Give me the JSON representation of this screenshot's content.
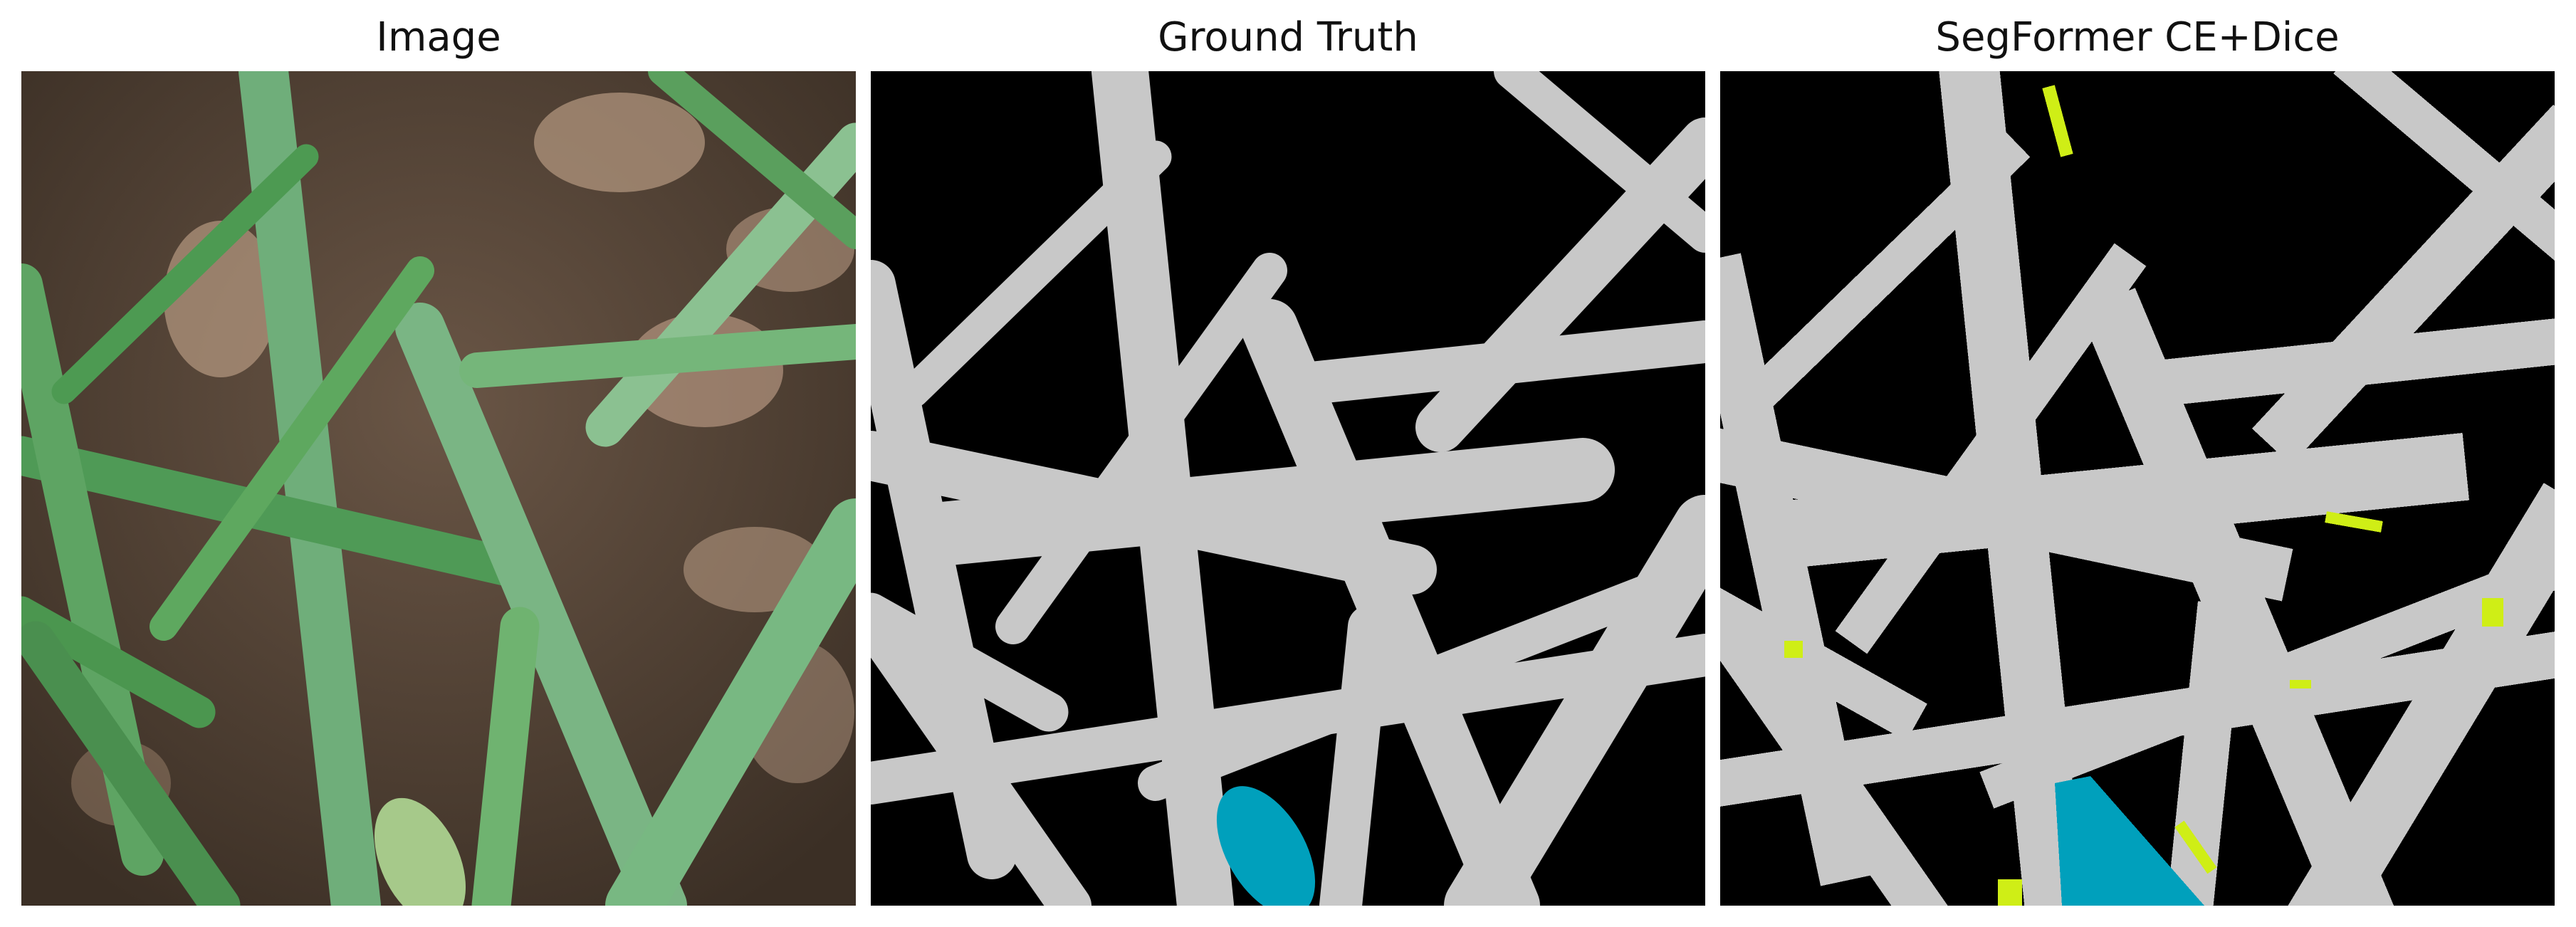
{
  "panels": [
    {
      "title": "Image",
      "kind": "photo-of-wheat-leaves-on-soil"
    },
    {
      "title": "Ground Truth",
      "kind": "segmentation-mask"
    },
    {
      "title": "SegFormer CE+Dice",
      "kind": "segmentation-mask"
    }
  ],
  "colors": {
    "background_class": "#000000",
    "plant_class": "#c8c8c8",
    "ear_class": "#00a0bc",
    "misclassified_class": "#cfee16",
    "soil": "#4a3a2e",
    "leaf_light": "#8fc08a",
    "leaf_dark": "#3f8a4a"
  }
}
